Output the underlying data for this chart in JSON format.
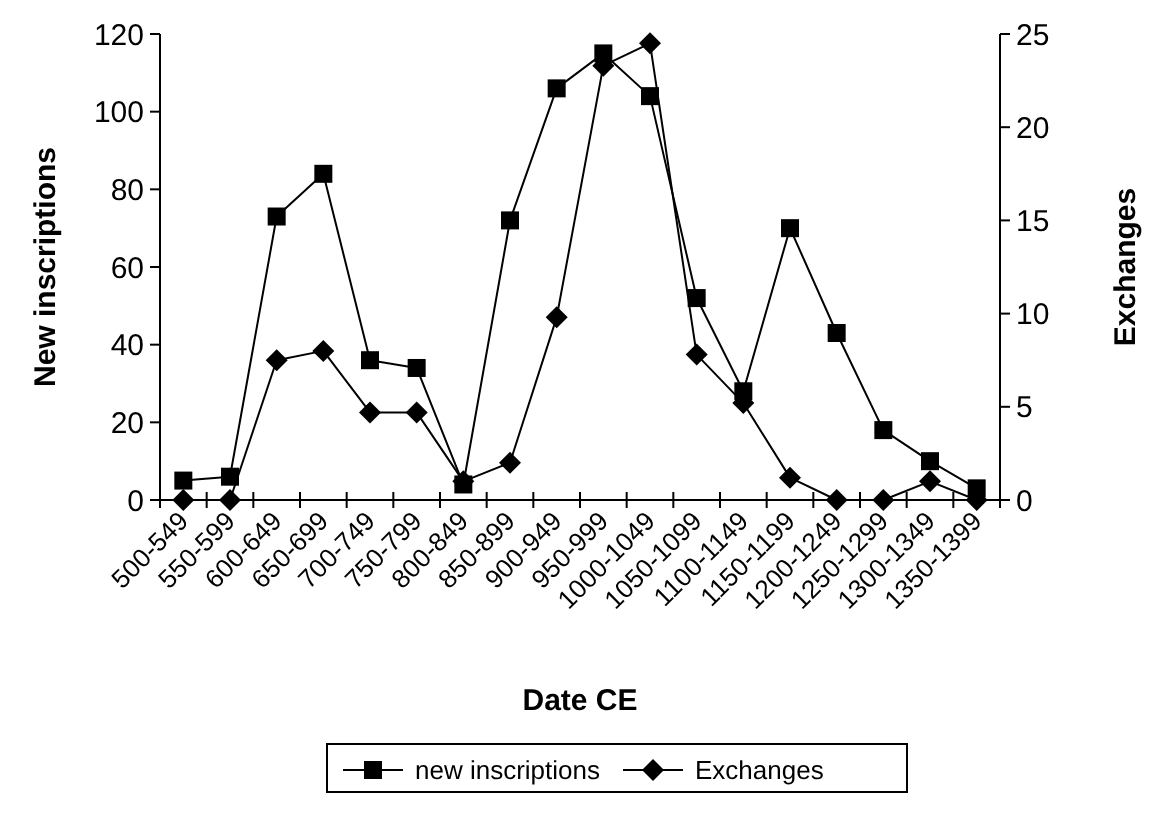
{
  "chart_data": {
    "type": "line",
    "xlabel": "Date CE",
    "ylabel": "New inscriptions",
    "y2label": "Exchanges",
    "categories": [
      "500-549",
      "550-599",
      "600-649",
      "650-699",
      "700-749",
      "750-799",
      "800-849",
      "850-899",
      "900-949",
      "950-999",
      "1000-1049",
      "1050-1099",
      "1100-1149",
      "1150-1199",
      "1200-1249",
      "1250-1299",
      "1300-1349",
      "1350-1399"
    ],
    "series": [
      {
        "name": "new inscriptions",
        "color": "#000000",
        "marker": "square",
        "values": [
          5,
          6,
          73,
          84,
          36,
          34,
          4,
          72,
          106,
          115,
          104,
          52,
          28,
          70,
          43,
          18,
          10,
          3
        ]
      },
      {
        "name": "Exchanges",
        "color": "#000000",
        "marker": "diamond",
        "axis": "y2",
        "values": [
          0,
          0,
          7.5,
          8,
          4.7,
          4.7,
          1,
          2,
          9.8,
          23.3,
          24.5,
          7.8,
          5.2,
          1.2,
          0,
          0,
          1,
          0
        ]
      }
    ],
    "ylim": [
      0,
      120
    ],
    "yticks": [
      0,
      20,
      40,
      60,
      80,
      100,
      120
    ],
    "y2lim": [
      0,
      25
    ],
    "y2ticks": [
      0,
      5,
      10,
      15,
      20,
      25
    ],
    "grid": false,
    "legend": "bottom",
    "line_style": "solid"
  }
}
